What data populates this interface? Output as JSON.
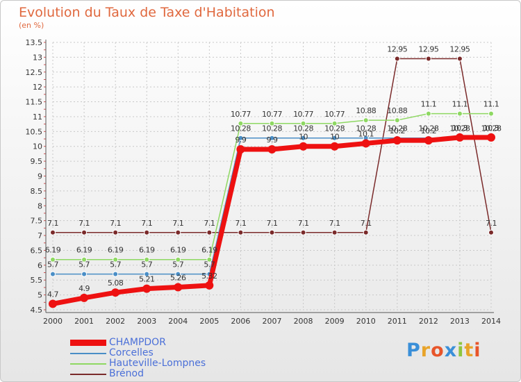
{
  "chart_data": {
    "type": "line",
    "title": "Evolution du Taux de Taxe d'Habitation",
    "subtitle": "(en %)",
    "x": [
      "2000",
      "2001",
      "2002",
      "2003",
      "2004",
      "2005",
      "2006",
      "2007",
      "2008",
      "2009",
      "2010",
      "2011",
      "2012",
      "2013",
      "2014"
    ],
    "yticks": [
      "4.5",
      "5",
      "5.5",
      "6",
      "6.5",
      "7",
      "7.5",
      "8",
      "8.5",
      "9",
      "9.5",
      "10",
      "10.5",
      "11",
      "11.5",
      "12",
      "12.5",
      "13",
      "13.5"
    ],
    "ylim": [
      4.5,
      13.5
    ],
    "series": [
      {
        "name": "CHAMPDOR",
        "color": "#ee1111",
        "values": [
          4.7,
          4.9,
          5.08,
          5.21,
          5.26,
          5.32,
          9.9,
          9.9,
          10,
          10,
          10.1,
          10.2,
          10.2,
          10.3,
          10.3
        ],
        "labels": [
          "4.7",
          "4.9",
          "5.08",
          "5.21",
          "5.26",
          "5.32",
          "9.9",
          "9.9",
          "10",
          "10",
          "10.1",
          "10.2",
          "10.2",
          "10.3",
          "10.3"
        ]
      },
      {
        "name": "Corcelles",
        "color": "#4a8ec6",
        "values": [
          5.7,
          5.7,
          5.7,
          5.7,
          5.7,
          5.7,
          10.28,
          10.28,
          10.28,
          10.28,
          10.28,
          10.28,
          10.28,
          10.28,
          10.28
        ],
        "labels": [
          "5.7",
          "5.7",
          "5.7",
          "5.7",
          "5.7",
          "5.7",
          "10.28",
          "10.28",
          "10.28",
          "10.28",
          "10.28",
          "10.28",
          "10.28",
          "10.28",
          "10.28"
        ]
      },
      {
        "name": "Hauteville-Lompnes",
        "color": "#8ed862",
        "values": [
          6.19,
          6.19,
          6.19,
          6.19,
          6.19,
          6.19,
          10.77,
          10.77,
          10.77,
          10.77,
          10.88,
          10.88,
          11.1,
          11.1,
          11.1
        ],
        "labels": [
          "6.19",
          "6.19",
          "6.19",
          "6.19",
          "6.19",
          "6.19",
          "10.77",
          "10.77",
          "10.77",
          "10.77",
          "10.88",
          "10.88",
          "11.1",
          "11.1",
          "11.1"
        ]
      },
      {
        "name": "Brénod",
        "color": "#7a2a2a",
        "values": [
          7.1,
          7.1,
          7.1,
          7.1,
          7.1,
          7.1,
          7.1,
          7.1,
          7.1,
          7.1,
          7.1,
          12.95,
          12.95,
          12.95,
          7.1
        ],
        "labels": [
          "7.1",
          "7.1",
          "7.1",
          "7.1",
          "7.1",
          "7.1",
          "7.1",
          "7.1",
          "7.1",
          "7.1",
          "7.1",
          "12.95",
          "12.95",
          "12.95",
          "7.1"
        ]
      }
    ],
    "legend_position": "bottom-left"
  },
  "logo": {
    "letters": [
      "P",
      "r",
      "o",
      "x",
      "i",
      "t",
      "i"
    ],
    "colors": [
      "#3a8fd8",
      "#e8a42a",
      "#e8552a",
      "#3a8fd8",
      "#8ec63f",
      "#e8a42a",
      "#e8552a"
    ]
  }
}
